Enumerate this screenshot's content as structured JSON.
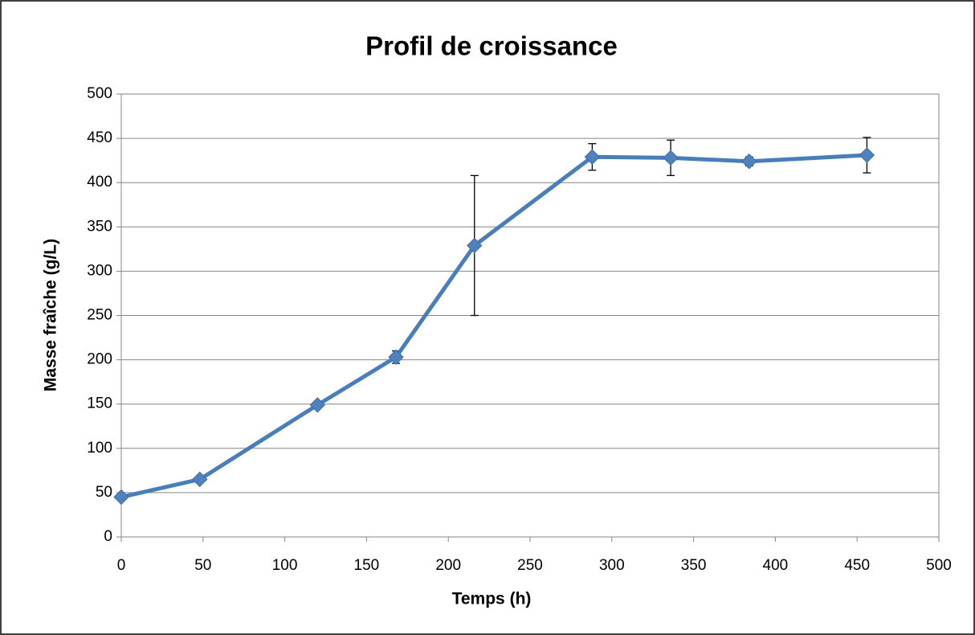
{
  "chart_data": {
    "type": "line",
    "title": "Profil de croissance",
    "x_label": "Temps (h)",
    "y_label": "Masse fraîche (g/L)",
    "x": [
      0,
      48,
      120,
      168,
      216,
      288,
      336,
      384,
      456
    ],
    "series": [
      {
        "name": "Masse fraîche",
        "color": "#4a7ebb",
        "values": [
          45,
          65,
          149,
          203,
          329,
          429,
          428,
          424,
          431
        ],
        "errors": [
          2,
          2,
          3,
          7,
          79,
          15,
          20,
          5,
          20
        ]
      }
    ],
    "xlim": [
      0,
      500
    ],
    "xticks": [
      0,
      50,
      100,
      150,
      200,
      250,
      300,
      350,
      400,
      450,
      500
    ],
    "ylim": [
      0,
      500
    ],
    "yticks": [
      0,
      50,
      100,
      150,
      200,
      250,
      300,
      350,
      400,
      450,
      500
    ],
    "grid": true
  }
}
